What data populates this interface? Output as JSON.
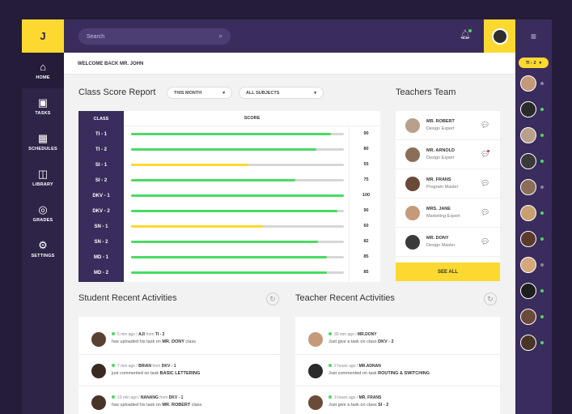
{
  "app": {
    "logo": "J",
    "welcome": "WELCOME BACK MR. JOHN"
  },
  "search": {
    "placeholder": "Search"
  },
  "nav": [
    {
      "label": "HOME",
      "icon": "home-icon",
      "glyph": "⌂"
    },
    {
      "label": "TASKS",
      "icon": "tasks-icon",
      "glyph": "▣"
    },
    {
      "label": "SCHEDULES",
      "icon": "calendar-icon",
      "glyph": "▦"
    },
    {
      "label": "LIBRARY",
      "icon": "book-icon",
      "glyph": "◫"
    },
    {
      "label": "GRADES",
      "icon": "medal-icon",
      "glyph": "◎"
    },
    {
      "label": "SETTINGS",
      "icon": "gear-icon",
      "glyph": "⚙"
    }
  ],
  "score_report": {
    "title": "Class Score Report",
    "period": "THIS MONTH",
    "subject": "ALL SUBJECTS",
    "col_class": "CLASS",
    "col_score": "SCORE",
    "rows": [
      {
        "cls": "TI - 1",
        "score": "90",
        "pct": 0.94,
        "color": "#4cd964"
      },
      {
        "cls": "TI - 2",
        "score": "80",
        "pct": 0.87,
        "color": "#4cd964"
      },
      {
        "cls": "SI - 1",
        "score": "55",
        "pct": 0.55,
        "color": "#fbd930"
      },
      {
        "cls": "SI - 2",
        "score": "75",
        "pct": 0.77,
        "color": "#4cd964"
      },
      {
        "cls": "DKV - 1",
        "score": "100",
        "pct": 1.0,
        "color": "#4cd964"
      },
      {
        "cls": "DKV - 2",
        "score": "90",
        "pct": 0.97,
        "color": "#4cd964"
      },
      {
        "cls": "SN - 1",
        "score": "60",
        "pct": 0.62,
        "color": "#fbd930"
      },
      {
        "cls": "SN - 2",
        "score": "82",
        "pct": 0.88,
        "color": "#4cd964"
      },
      {
        "cls": "MD - 1",
        "score": "85",
        "pct": 0.92,
        "color": "#4cd964"
      },
      {
        "cls": "MD - 2",
        "score": "85",
        "pct": 0.92,
        "color": "#4cd964"
      }
    ]
  },
  "teachers": {
    "title": "Teachers Team",
    "see_all": "SEE ALL",
    "members": [
      {
        "name": "MR. ROBERT",
        "role": "Design Expert",
        "color": "#b8a08a",
        "unread": false
      },
      {
        "name": "MR. ARNOLD",
        "role": "Design Expert",
        "color": "#8a6e5a",
        "unread": true
      },
      {
        "name": "MR. FRANS",
        "role": "Program Master",
        "color": "#6a4a38",
        "unread": false
      },
      {
        "name": "MRS. JANE",
        "role": "Marketing Expert",
        "color": "#c49a7a",
        "unread": false
      },
      {
        "name": "MR. DONY",
        "role": "Design Master",
        "color": "#3a3a3a",
        "unread": false
      }
    ]
  },
  "student_activities": {
    "title": "Student Recent Activities",
    "items": [
      {
        "time": "5 min ago",
        "user": "AJI",
        "from": "from",
        "cls": "TI - 2",
        "text": "has uploaded his task on",
        "target": "MR. DONY",
        "suffix": "class",
        "color": "#5a4030"
      },
      {
        "time": "7 min ago",
        "user": "BRIAN",
        "from": "from",
        "cls": "DKV - 1",
        "text": "just commented on task",
        "target": "BASIC LETTERING",
        "suffix": "",
        "color": "#3a2a22"
      },
      {
        "time": "13 min ago",
        "user": "NANANG",
        "from": "from",
        "cls": "DKV - 1",
        "text": "has uploaded his task on",
        "target": "MR. ROBERT",
        "suffix": "class",
        "color": "#4a3428"
      }
    ]
  },
  "teacher_activities": {
    "title": "Teacher Recent Activities",
    "items": [
      {
        "time": "30 min ago",
        "user": "MR.DONY",
        "text": "Just give a task on class",
        "target": "DKV - 2",
        "color": "#c49a7a"
      },
      {
        "time": "2 hours ago",
        "user": "MR.ADNAN",
        "text": "Just commented on task",
        "target": "ROUTING & SWITCHING",
        "color": "#2a2a2a"
      },
      {
        "time": "3 hours ago",
        "user": "MR. FRANS",
        "text": "Just give a task on class",
        "target": "SI - 2",
        "color": "#6a4a38"
      }
    ]
  },
  "online": {
    "class_pill": "TI - 2",
    "users": [
      {
        "color": "#c49a7a",
        "online": false
      },
      {
        "color": "#2a2a2a",
        "online": true
      },
      {
        "color": "#b8a08a",
        "online": true
      },
      {
        "color": "#3a3a3a",
        "online": true
      },
      {
        "color": "#8a6e5a",
        "online": false
      },
      {
        "color": "#c8a070",
        "online": true
      },
      {
        "color": "#5a3a2a",
        "online": true
      },
      {
        "color": "#d4a878",
        "online": false
      },
      {
        "color": "#1e1e1e",
        "online": true
      },
      {
        "color": "#6a4a38",
        "online": true
      },
      {
        "color": "#4a3428",
        "online": true
      }
    ]
  }
}
